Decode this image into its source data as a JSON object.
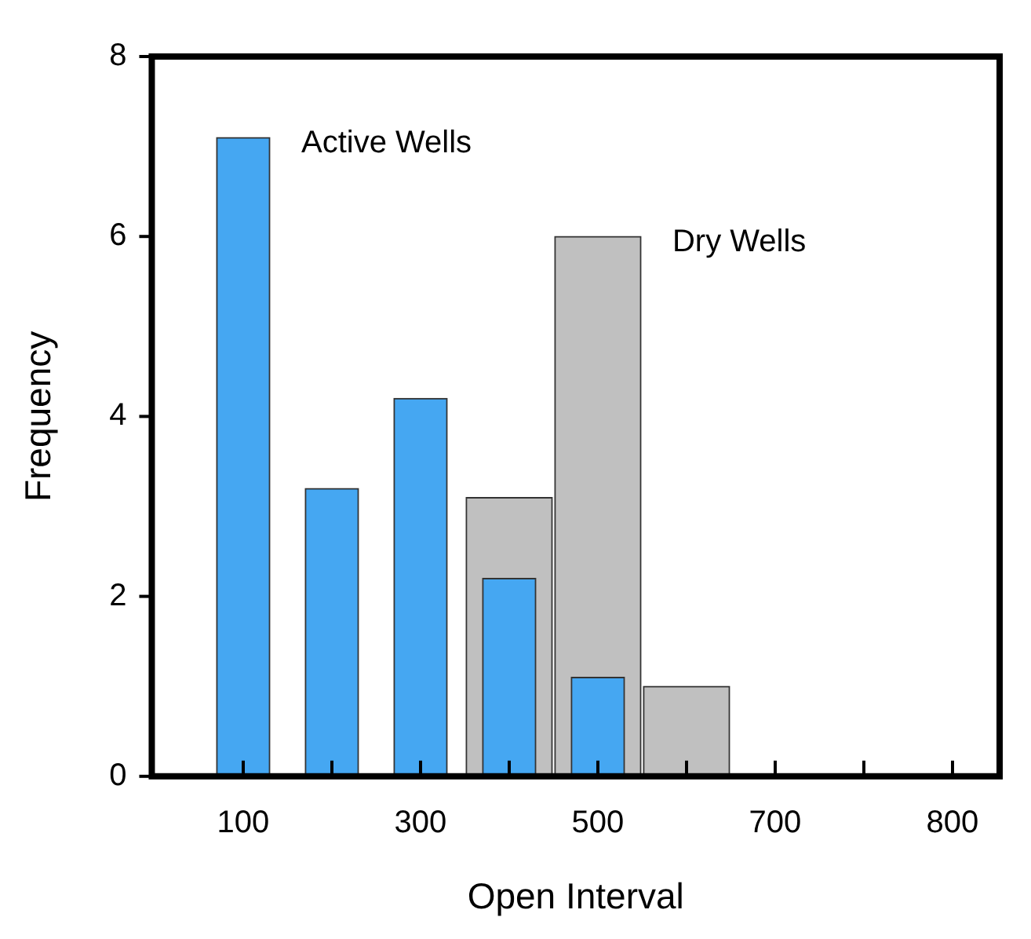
{
  "chart_data": {
    "type": "bar",
    "xlabel": "Open Interval",
    "ylabel": "Frequency",
    "categories": [
      "100",
      null,
      "300",
      null,
      "500",
      null,
      "700",
      null,
      "800"
    ],
    "ylim": [
      0,
      8
    ],
    "yticks": [
      0,
      2,
      4,
      6,
      8
    ],
    "grid": false,
    "legend": false,
    "series": [
      {
        "name": "Active Wells",
        "color": "#45a7f2",
        "values": [
          7.1,
          3.2,
          4.2,
          2.2,
          1.1,
          null,
          null,
          null,
          null
        ]
      },
      {
        "name": "Dry Wells",
        "color": "#c0c0c0",
        "values": [
          null,
          null,
          null,
          3.1,
          6.0,
          1.0,
          null,
          null,
          null
        ]
      }
    ]
  }
}
